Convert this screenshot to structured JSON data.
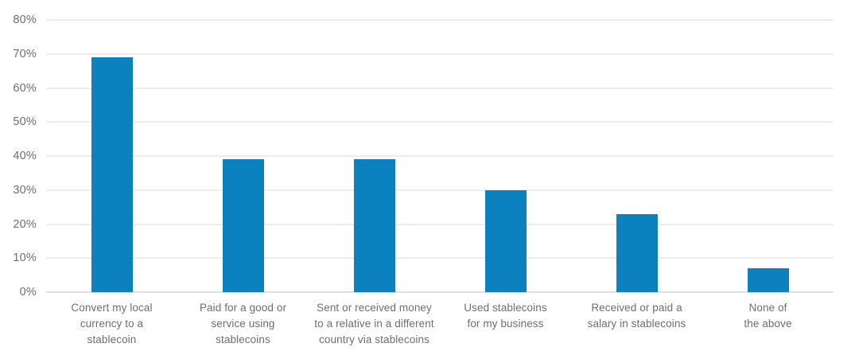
{
  "chart_data": {
    "type": "bar",
    "title": "",
    "xlabel": "",
    "ylabel": "",
    "categories": [
      "Convert my local currency to a stablecoin",
      "Paid for a good or service using stablecoins",
      "Sent or received money to a relative in a different country via stablecoins",
      "Used stablecoins for my business",
      "Received or paid a salary in stablecoins",
      "None of the above"
    ],
    "category_lines": [
      [
        "Convert my local",
        "currency to a",
        "stablecoin"
      ],
      [
        "Paid for a good or",
        "service using",
        "stablecoins"
      ],
      [
        "Sent or received money",
        "to a relative in a different",
        "country via stablecoins"
      ],
      [
        "Used stablecoins",
        "for my business"
      ],
      [
        "Received or paid a",
        "salary in stablecoins"
      ],
      [
        "None of",
        "the above"
      ]
    ],
    "values": [
      69,
      39,
      39,
      30,
      23,
      7
    ],
    "unit": "%",
    "ylim": [
      0,
      80
    ],
    "yticks": [
      0,
      10,
      20,
      30,
      40,
      50,
      60,
      70,
      80
    ],
    "ytick_labels": [
      "0%",
      "10%",
      "20%",
      "30%",
      "40%",
      "50%",
      "60%",
      "70%",
      "80%"
    ],
    "grid": true,
    "legend": false,
    "colors": {
      "bar": "#0c81bf",
      "gridline": "#ececec",
      "axis_line": "#e0e0e0",
      "text": "#6d6e71",
      "background": "#ffffff"
    }
  }
}
